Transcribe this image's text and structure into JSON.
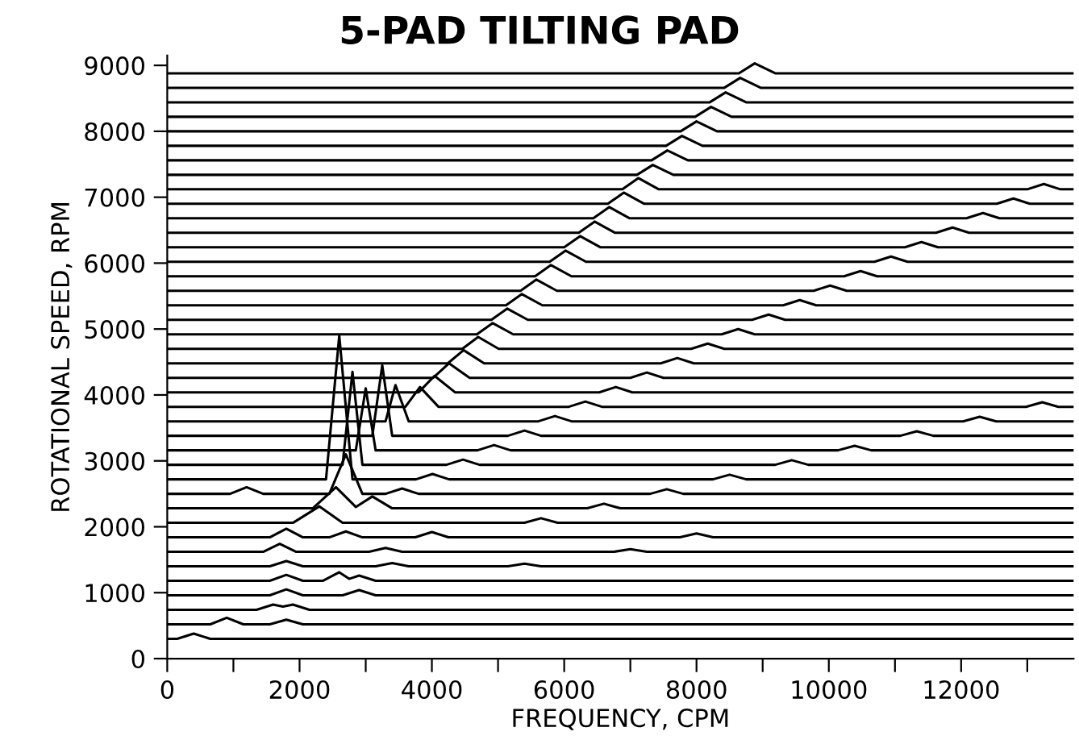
{
  "chart_data": {
    "type": "line",
    "title": "5-PAD TILTING PAD",
    "xlabel": "FREQUENCY, CPM",
    "ylabel": "ROTATIONAL SPEED, RPM",
    "xlim": [
      0,
      13700
    ],
    "ylim": [
      0,
      9150
    ],
    "xticks": [
      0,
      {
        "value": 1000,
        "label": null
      },
      2000,
      {
        "value": 3000,
        "label": null
      },
      4000,
      {
        "value": 5000,
        "label": null
      },
      6000,
      {
        "value": 7000,
        "label": null
      },
      8000,
      {
        "value": 9000,
        "label": null
      },
      10000,
      {
        "value": 11000,
        "label": null
      },
      12000,
      {
        "value": 13000,
        "label": null
      }
    ],
    "yticks": [
      0,
      1000,
      2000,
      3000,
      4000,
      5000,
      6000,
      7000,
      8000,
      9000
    ],
    "line_style": "solid",
    "series": [
      {
        "color": "#000000",
        "x": [
          0,
          150,
          400,
          650,
          13700
        ],
        "values": [
          300,
          300,
          380,
          300,
          300
        ]
      },
      {
        "color": "#000000",
        "x": [
          0,
          650,
          900,
          1150,
          1550,
          1800,
          2050,
          13700
        ],
        "values": [
          520,
          520,
          620,
          520,
          520,
          590,
          520,
          520
        ]
      },
      {
        "color": "#000000",
        "x": [
          0,
          1350,
          1600,
          1750,
          1900,
          2150,
          13700
        ],
        "values": [
          740,
          740,
          820,
          790,
          820,
          740,
          740
        ]
      },
      {
        "color": "#000000",
        "x": [
          0,
          1550,
          1800,
          2050,
          2650,
          2900,
          3150,
          13700
        ],
        "values": [
          960,
          960,
          1050,
          960,
          960,
          1040,
          960,
          960
        ]
      },
      {
        "color": "#000000",
        "x": [
          0,
          1550,
          1800,
          2050,
          2350,
          2600,
          2750,
          2900,
          3150,
          13700
        ],
        "values": [
          1180,
          1180,
          1270,
          1180,
          1180,
          1310,
          1210,
          1260,
          1180,
          1180
        ]
      },
      {
        "color": "#000000",
        "x": [
          0,
          1550,
          1800,
          2050,
          3150,
          3400,
          3650,
          5150,
          5400,
          5650,
          13700
        ],
        "values": [
          1400,
          1400,
          1480,
          1400,
          1400,
          1450,
          1400,
          1400,
          1440,
          1400,
          1400
        ]
      },
      {
        "color": "#000000",
        "x": [
          0,
          1450,
          1700,
          1950,
          3050,
          3300,
          3550,
          6750,
          7000,
          7250,
          13700
        ],
        "values": [
          1620,
          1620,
          1740,
          1620,
          1620,
          1680,
          1620,
          1620,
          1660,
          1620,
          1620
        ]
      },
      {
        "color": "#000000",
        "x": [
          0,
          1550,
          1800,
          2050,
          2450,
          2700,
          2950,
          3750,
          4000,
          4250,
          7750,
          8000,
          8250,
          13700
        ],
        "values": [
          1840,
          1840,
          1970,
          1840,
          1840,
          1930,
          1840,
          1840,
          1920,
          1840,
          1840,
          1900,
          1840,
          1840
        ]
      },
      {
        "color": "#000000",
        "x": [
          0,
          1900,
          2300,
          2650,
          5400,
          5650,
          5900,
          13700
        ],
        "values": [
          2060,
          2060,
          2310,
          2060,
          2060,
          2130,
          2060,
          2060
        ]
      },
      {
        "color": "#000000",
        "x": [
          0,
          2200,
          2550,
          2850,
          3100,
          3400,
          6350,
          6600,
          6850,
          13700
        ],
        "values": [
          2280,
          2280,
          2600,
          2300,
          2460,
          2280,
          2280,
          2350,
          2280,
          2280
        ]
      },
      {
        "color": "#000000",
        "x": [
          0,
          950,
          1200,
          1450,
          2450,
          2700,
          2950,
          3300,
          3550,
          3800,
          7300,
          7550,
          7800,
          13700
        ],
        "values": [
          2500,
          2500,
          2600,
          2500,
          2500,
          3100,
          2500,
          2500,
          2580,
          2500,
          2500,
          2570,
          2500,
          2500
        ]
      },
      {
        "color": "#000000",
        "x": [
          0,
          2400,
          2600,
          2800,
          3760,
          4010,
          4260,
          8250,
          8500,
          8750,
          13700
        ],
        "values": [
          2720,
          2720,
          4900,
          2720,
          2720,
          2800,
          2720,
          2720,
          2790,
          2720,
          2720
        ]
      },
      {
        "color": "#000000",
        "x": [
          0,
          2650,
          2800,
          2950,
          4220,
          4470,
          4720,
          9190,
          9440,
          9690,
          13700
        ],
        "values": [
          2940,
          2940,
          4350,
          2940,
          2940,
          3020,
          2940,
          2940,
          3010,
          2940,
          2940
        ]
      },
      {
        "color": "#000000",
        "x": [
          0,
          2850,
          3000,
          3150,
          4690,
          4940,
          5190,
          10140,
          10390,
          10640,
          13700
        ],
        "values": [
          3160,
          3160,
          4100,
          3160,
          3160,
          3240,
          3160,
          3160,
          3230,
          3160,
          3160
        ]
      },
      {
        "color": "#000000",
        "x": [
          0,
          3100,
          3250,
          3400,
          5150,
          5400,
          5650,
          11080,
          11330,
          11580,
          13700
        ],
        "values": [
          3380,
          3380,
          4450,
          3380,
          3380,
          3460,
          3380,
          3380,
          3450,
          3380,
          3380
        ]
      },
      {
        "color": "#000000",
        "x": [
          0,
          3300,
          3450,
          3650,
          5610,
          5860,
          6110,
          12030,
          12280,
          12530,
          13700
        ],
        "values": [
          3600,
          3600,
          4150,
          3600,
          3600,
          3680,
          3600,
          3600,
          3670,
          3600,
          3600
        ]
      },
      {
        "color": "#000000",
        "x": [
          0,
          3600,
          3820,
          4100,
          6070,
          6320,
          6570,
          12980,
          13226,
          13470,
          13700
        ],
        "values": [
          3820,
          3820,
          4120,
          3820,
          3820,
          3900,
          3820,
          3820,
          3890,
          3820,
          3820
        ]
      },
      {
        "color": "#000000",
        "x": [
          0,
          3800,
          4040,
          4350,
          6530,
          6780,
          7030,
          13700
        ],
        "values": [
          4040,
          4040,
          4290,
          4040,
          4040,
          4120,
          4040,
          4040
        ]
      },
      {
        "color": "#000000",
        "x": [
          0,
          4020,
          4260,
          4570,
          7000,
          7250,
          7500,
          13700
        ],
        "values": [
          4260,
          4260,
          4480,
          4260,
          4260,
          4340,
          4260,
          4260
        ]
      },
      {
        "color": "#000000",
        "x": [
          0,
          4240,
          4480,
          4790,
          7460,
          7710,
          7960,
          13700
        ],
        "values": [
          4480,
          4480,
          4680,
          4480,
          4480,
          4560,
          4480,
          4480
        ]
      },
      {
        "color": "#000000",
        "x": [
          0,
          4460,
          4700,
          5010,
          7920,
          8170,
          8420,
          13700
        ],
        "values": [
          4700,
          4700,
          4880,
          4700,
          4700,
          4780,
          4700,
          4700
        ]
      },
      {
        "color": "#000000",
        "x": [
          0,
          4680,
          4920,
          5230,
          8380,
          8630,
          8880,
          13700
        ],
        "values": [
          4920,
          4920,
          5090,
          4920,
          4920,
          5000,
          4920,
          4920
        ]
      },
      {
        "color": "#000000",
        "x": [
          0,
          4900,
          5140,
          5450,
          8840,
          9090,
          9340,
          13700
        ],
        "values": [
          5140,
          5140,
          5310,
          5140,
          5140,
          5220,
          5140,
          5140
        ]
      },
      {
        "color": "#000000",
        "x": [
          0,
          5120,
          5360,
          5670,
          9310,
          9560,
          9810,
          13700
        ],
        "values": [
          5360,
          5360,
          5530,
          5360,
          5360,
          5440,
          5360,
          5360
        ]
      },
      {
        "color": "#000000",
        "x": [
          0,
          5340,
          5580,
          5890,
          9770,
          10020,
          10270,
          13700
        ],
        "values": [
          5580,
          5580,
          5750,
          5580,
          5580,
          5660,
          5580,
          5580
        ]
      },
      {
        "color": "#000000",
        "x": [
          0,
          5560,
          5800,
          6110,
          10230,
          10480,
          10730,
          13700
        ],
        "values": [
          5800,
          5800,
          5970,
          5800,
          5800,
          5880,
          5800,
          5800
        ]
      },
      {
        "color": "#000000",
        "x": [
          0,
          5780,
          6020,
          6330,
          10690,
          10940,
          11190,
          13700
        ],
        "values": [
          6020,
          6020,
          6190,
          6020,
          6020,
          6100,
          6020,
          6020
        ]
      },
      {
        "color": "#000000",
        "x": [
          0,
          6000,
          6240,
          6550,
          11150,
          11400,
          11650,
          13700
        ],
        "values": [
          6240,
          6240,
          6410,
          6240,
          6240,
          6320,
          6240,
          6240
        ]
      },
      {
        "color": "#000000",
        "x": [
          0,
          6220,
          6460,
          6770,
          11620,
          11870,
          12120,
          13700
        ],
        "values": [
          6460,
          6460,
          6630,
          6460,
          6460,
          6540,
          6460,
          6460
        ]
      },
      {
        "color": "#000000",
        "x": [
          0,
          6440,
          6680,
          6990,
          12080,
          12330,
          12580,
          13700
        ],
        "values": [
          6680,
          6680,
          6850,
          6680,
          6680,
          6760,
          6680,
          6680
        ]
      },
      {
        "color": "#000000",
        "x": [
          0,
          6660,
          6900,
          7210,
          12540,
          12790,
          13040,
          13700
        ],
        "values": [
          6900,
          6900,
          7070,
          6900,
          6900,
          6980,
          6900,
          6900
        ]
      },
      {
        "color": "#000000",
        "x": [
          0,
          6880,
          7120,
          7430,
          13000,
          13250,
          13500,
          13700
        ],
        "values": [
          7120,
          7120,
          7290,
          7120,
          7120,
          7200,
          7120,
          7120
        ]
      },
      {
        "color": "#000000",
        "x": [
          0,
          7100,
          7340,
          7650,
          13700
        ],
        "values": [
          7340,
          7340,
          7490,
          7340,
          7340
        ]
      },
      {
        "color": "#000000",
        "x": [
          0,
          7320,
          7560,
          7870,
          13700
        ],
        "values": [
          7560,
          7560,
          7710,
          7560,
          7560
        ]
      },
      {
        "color": "#000000",
        "x": [
          0,
          7540,
          7780,
          8090,
          13700
        ],
        "values": [
          7780,
          7780,
          7930,
          7780,
          7780
        ]
      },
      {
        "color": "#000000",
        "x": [
          0,
          7760,
          8000,
          8310,
          13700
        ],
        "values": [
          8000,
          8000,
          8150,
          8000,
          8000
        ]
      },
      {
        "color": "#000000",
        "x": [
          0,
          7980,
          8220,
          8530,
          13700
        ],
        "values": [
          8220,
          8220,
          8370,
          8220,
          8220
        ]
      },
      {
        "color": "#000000",
        "x": [
          0,
          8200,
          8440,
          8750,
          13700
        ],
        "values": [
          8440,
          8440,
          8590,
          8440,
          8440
        ]
      },
      {
        "color": "#000000",
        "x": [
          0,
          8420,
          8660,
          8970,
          13700
        ],
        "values": [
          8660,
          8660,
          8810,
          8660,
          8660
        ]
      },
      {
        "color": "#000000",
        "x": [
          0,
          8640,
          8880,
          9190,
          13700
        ],
        "values": [
          8880,
          8880,
          9030,
          8880,
          8880
        ]
      }
    ]
  }
}
